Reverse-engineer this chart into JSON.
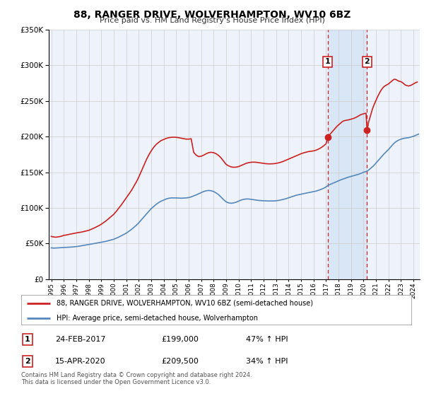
{
  "title": "88, RANGER DRIVE, WOLVERHAMPTON, WV10 6BZ",
  "subtitle": "Price paid vs. HM Land Registry's House Price Index (HPI)",
  "legend_line1": "88, RANGER DRIVE, WOLVERHAMPTON, WV10 6BZ (semi-detached house)",
  "legend_line2": "HPI: Average price, semi-detached house, Wolverhampton",
  "footnote1": "Contains HM Land Registry data © Crown copyright and database right 2024.",
  "footnote2": "This data is licensed under the Open Government Licence v3.0.",
  "marker1_label": "1",
  "marker1_date": "24-FEB-2017",
  "marker1_price": "£199,000",
  "marker1_hpi": "47% ↑ HPI",
  "marker1_x": 2017.12,
  "marker1_y": 199000,
  "marker2_label": "2",
  "marker2_date": "15-APR-2020",
  "marker2_price": "£209,500",
  "marker2_hpi": "34% ↑ HPI",
  "marker2_x": 2020.28,
  "marker2_y": 209500,
  "ylim": [
    0,
    350000
  ],
  "xlim_start": 1994.8,
  "xlim_end": 2024.5,
  "hpi_color": "#5588bb",
  "price_color": "#cc2222",
  "bg_color": "#eef2fa",
  "grid_color": "#cccccc",
  "vline_color": "#cc2222",
  "shade_color": "#d8e6f5",
  "hpi_data": [
    [
      1995.0,
      44000
    ],
    [
      1995.1,
      43800
    ],
    [
      1995.2,
      43600
    ],
    [
      1995.3,
      43700
    ],
    [
      1995.4,
      43900
    ],
    [
      1995.5,
      44000
    ],
    [
      1995.6,
      44100
    ],
    [
      1995.7,
      44200
    ],
    [
      1995.8,
      44300
    ],
    [
      1995.9,
      44400
    ],
    [
      1996.0,
      44500
    ],
    [
      1996.2,
      44600
    ],
    [
      1996.4,
      44800
    ],
    [
      1996.6,
      45000
    ],
    [
      1996.8,
      45300
    ],
    [
      1997.0,
      45700
    ],
    [
      1997.2,
      46200
    ],
    [
      1997.4,
      46800
    ],
    [
      1997.6,
      47400
    ],
    [
      1997.8,
      47900
    ],
    [
      1998.0,
      48500
    ],
    [
      1998.2,
      49200
    ],
    [
      1998.4,
      49900
    ],
    [
      1998.6,
      50600
    ],
    [
      1998.8,
      51200
    ],
    [
      1999.0,
      51800
    ],
    [
      1999.2,
      52500
    ],
    [
      1999.4,
      53200
    ],
    [
      1999.6,
      54100
    ],
    [
      1999.8,
      55000
    ],
    [
      2000.0,
      56000
    ],
    [
      2000.2,
      57500
    ],
    [
      2000.4,
      59000
    ],
    [
      2000.6,
      60800
    ],
    [
      2000.8,
      62500
    ],
    [
      2001.0,
      64500
    ],
    [
      2001.2,
      67000
    ],
    [
      2001.4,
      69500
    ],
    [
      2001.6,
      72500
    ],
    [
      2001.8,
      75500
    ],
    [
      2002.0,
      79000
    ],
    [
      2002.2,
      83000
    ],
    [
      2002.4,
      87000
    ],
    [
      2002.6,
      91000
    ],
    [
      2002.8,
      95000
    ],
    [
      2003.0,
      99000
    ],
    [
      2003.2,
      102000
    ],
    [
      2003.4,
      105000
    ],
    [
      2003.6,
      107500
    ],
    [
      2003.8,
      109500
    ],
    [
      2004.0,
      111000
    ],
    [
      2004.2,
      112500
    ],
    [
      2004.4,
      113500
    ],
    [
      2004.6,
      114000
    ],
    [
      2004.8,
      114000
    ],
    [
      2005.0,
      114000
    ],
    [
      2005.2,
      113800
    ],
    [
      2005.4,
      113600
    ],
    [
      2005.6,
      113800
    ],
    [
      2005.8,
      114000
    ],
    [
      2006.0,
      114500
    ],
    [
      2006.2,
      115500
    ],
    [
      2006.4,
      116800
    ],
    [
      2006.6,
      118200
    ],
    [
      2006.8,
      119800
    ],
    [
      2007.0,
      121500
    ],
    [
      2007.2,
      123000
    ],
    [
      2007.4,
      124000
    ],
    [
      2007.6,
      124500
    ],
    [
      2007.8,
      124000
    ],
    [
      2008.0,
      123000
    ],
    [
      2008.2,
      121000
    ],
    [
      2008.4,
      118500
    ],
    [
      2008.6,
      115000
    ],
    [
      2008.8,
      111500
    ],
    [
      2009.0,
      108500
    ],
    [
      2009.2,
      107000
    ],
    [
      2009.4,
      106500
    ],
    [
      2009.6,
      107000
    ],
    [
      2009.8,
      108000
    ],
    [
      2010.0,
      109500
    ],
    [
      2010.2,
      111000
    ],
    [
      2010.4,
      112000
    ],
    [
      2010.6,
      112500
    ],
    [
      2010.8,
      112500
    ],
    [
      2011.0,
      112000
    ],
    [
      2011.2,
      111500
    ],
    [
      2011.4,
      111000
    ],
    [
      2011.6,
      110500
    ],
    [
      2011.8,
      110200
    ],
    [
      2012.0,
      110000
    ],
    [
      2012.2,
      109800
    ],
    [
      2012.4,
      109700
    ],
    [
      2012.6,
      109700
    ],
    [
      2012.8,
      109800
    ],
    [
      2013.0,
      110000
    ],
    [
      2013.2,
      110500
    ],
    [
      2013.4,
      111200
    ],
    [
      2013.6,
      112000
    ],
    [
      2013.8,
      113000
    ],
    [
      2014.0,
      114200
    ],
    [
      2014.2,
      115500
    ],
    [
      2014.4,
      116700
    ],
    [
      2014.6,
      117700
    ],
    [
      2014.8,
      118500
    ],
    [
      2015.0,
      119200
    ],
    [
      2015.2,
      120000
    ],
    [
      2015.4,
      120700
    ],
    [
      2015.6,
      121400
    ],
    [
      2015.8,
      122000
    ],
    [
      2016.0,
      122700
    ],
    [
      2016.2,
      123600
    ],
    [
      2016.4,
      124700
    ],
    [
      2016.6,
      126000
    ],
    [
      2016.8,
      127500
    ],
    [
      2017.0,
      129500
    ],
    [
      2017.12,
      131000
    ],
    [
      2017.2,
      132000
    ],
    [
      2017.4,
      133500
    ],
    [
      2017.6,
      135000
    ],
    [
      2017.8,
      136500
    ],
    [
      2018.0,
      138000
    ],
    [
      2018.2,
      139500
    ],
    [
      2018.4,
      140800
    ],
    [
      2018.6,
      142000
    ],
    [
      2018.8,
      143200
    ],
    [
      2019.0,
      144200
    ],
    [
      2019.2,
      145200
    ],
    [
      2019.4,
      146200
    ],
    [
      2019.6,
      147200
    ],
    [
      2019.8,
      148500
    ],
    [
      2020.0,
      150000
    ],
    [
      2020.28,
      151500
    ],
    [
      2020.4,
      153000
    ],
    [
      2020.6,
      156000
    ],
    [
      2020.8,
      159000
    ],
    [
      2021.0,
      163000
    ],
    [
      2021.2,
      167000
    ],
    [
      2021.4,
      171000
    ],
    [
      2021.6,
      175000
    ],
    [
      2021.8,
      178500
    ],
    [
      2022.0,
      182000
    ],
    [
      2022.2,
      186000
    ],
    [
      2022.4,
      190000
    ],
    [
      2022.6,
      193000
    ],
    [
      2022.8,
      195000
    ],
    [
      2023.0,
      196500
    ],
    [
      2023.2,
      197500
    ],
    [
      2023.4,
      198000
    ],
    [
      2023.6,
      198500
    ],
    [
      2023.8,
      199500
    ],
    [
      2024.0,
      200500
    ],
    [
      2024.2,
      202000
    ],
    [
      2024.4,
      203500
    ]
  ],
  "price_data": [
    [
      1995.0,
      60000
    ],
    [
      1995.1,
      59500
    ],
    [
      1995.2,
      59200
    ],
    [
      1995.3,
      59000
    ],
    [
      1995.4,
      59000
    ],
    [
      1995.5,
      59200
    ],
    [
      1995.6,
      59500
    ],
    [
      1995.7,
      59800
    ],
    [
      1995.8,
      60200
    ],
    [
      1995.9,
      60800
    ],
    [
      1996.0,
      61500
    ],
    [
      1996.2,
      62000
    ],
    [
      1996.4,
      62800
    ],
    [
      1996.6,
      63500
    ],
    [
      1996.8,
      64200
    ],
    [
      1997.0,
      65000
    ],
    [
      1997.2,
      65500
    ],
    [
      1997.4,
      66000
    ],
    [
      1997.6,
      66800
    ],
    [
      1997.8,
      67500
    ],
    [
      1998.0,
      68500
    ],
    [
      1998.2,
      70000
    ],
    [
      1998.4,
      71500
    ],
    [
      1998.6,
      73200
    ],
    [
      1998.8,
      75000
    ],
    [
      1999.0,
      77000
    ],
    [
      1999.2,
      79500
    ],
    [
      1999.4,
      82000
    ],
    [
      1999.6,
      85000
    ],
    [
      1999.8,
      88000
    ],
    [
      2000.0,
      91000
    ],
    [
      2000.2,
      95000
    ],
    [
      2000.4,
      99500
    ],
    [
      2000.6,
      104000
    ],
    [
      2000.8,
      109000
    ],
    [
      2001.0,
      114000
    ],
    [
      2001.2,
      119000
    ],
    [
      2001.4,
      124000
    ],
    [
      2001.6,
      130000
    ],
    [
      2001.8,
      136000
    ],
    [
      2002.0,
      143000
    ],
    [
      2002.2,
      151000
    ],
    [
      2002.4,
      159000
    ],
    [
      2002.6,
      167000
    ],
    [
      2002.8,
      174000
    ],
    [
      2003.0,
      180000
    ],
    [
      2003.2,
      185000
    ],
    [
      2003.4,
      189000
    ],
    [
      2003.6,
      192000
    ],
    [
      2003.8,
      194500
    ],
    [
      2004.0,
      196000
    ],
    [
      2004.2,
      197500
    ],
    [
      2004.4,
      198500
    ],
    [
      2004.6,
      199000
    ],
    [
      2004.8,
      199200
    ],
    [
      2005.0,
      199000
    ],
    [
      2005.2,
      198500
    ],
    [
      2005.4,
      197800
    ],
    [
      2005.6,
      197000
    ],
    [
      2005.8,
      196500
    ],
    [
      2006.0,
      196500
    ],
    [
      2006.2,
      197000
    ],
    [
      2006.4,
      178000
    ],
    [
      2006.6,
      174000
    ],
    [
      2006.8,
      172000
    ],
    [
      2007.0,
      172500
    ],
    [
      2007.2,
      174000
    ],
    [
      2007.4,
      176000
    ],
    [
      2007.6,
      177500
    ],
    [
      2007.8,
      178000
    ],
    [
      2008.0,
      177500
    ],
    [
      2008.2,
      176000
    ],
    [
      2008.4,
      173500
    ],
    [
      2008.6,
      170000
    ],
    [
      2008.8,
      165500
    ],
    [
      2009.0,
      161000
    ],
    [
      2009.2,
      159000
    ],
    [
      2009.4,
      157500
    ],
    [
      2009.6,
      157000
    ],
    [
      2009.8,
      157200
    ],
    [
      2010.0,
      158000
    ],
    [
      2010.2,
      159500
    ],
    [
      2010.4,
      161000
    ],
    [
      2010.6,
      162500
    ],
    [
      2010.8,
      163500
    ],
    [
      2011.0,
      164000
    ],
    [
      2011.2,
      164200
    ],
    [
      2011.4,
      164000
    ],
    [
      2011.6,
      163500
    ],
    [
      2011.8,
      163000
    ],
    [
      2012.0,
      162500
    ],
    [
      2012.2,
      162000
    ],
    [
      2012.4,
      161800
    ],
    [
      2012.6,
      161800
    ],
    [
      2012.8,
      162000
    ],
    [
      2013.0,
      162500
    ],
    [
      2013.2,
      163200
    ],
    [
      2013.4,
      164200
    ],
    [
      2013.6,
      165500
    ],
    [
      2013.8,
      167000
    ],
    [
      2014.0,
      168500
    ],
    [
      2014.2,
      170000
    ],
    [
      2014.4,
      171500
    ],
    [
      2014.6,
      173000
    ],
    [
      2014.8,
      174500
    ],
    [
      2015.0,
      176000
    ],
    [
      2015.2,
      177200
    ],
    [
      2015.4,
      178200
    ],
    [
      2015.6,
      179000
    ],
    [
      2015.8,
      179500
    ],
    [
      2016.0,
      180000
    ],
    [
      2016.2,
      181000
    ],
    [
      2016.4,
      182500
    ],
    [
      2016.6,
      184500
    ],
    [
      2016.8,
      187000
    ],
    [
      2017.0,
      190000
    ],
    [
      2017.05,
      193000
    ],
    [
      2017.08,
      196000
    ],
    [
      2017.12,
      199000
    ],
    [
      2017.2,
      201000
    ],
    [
      2017.3,
      203000
    ],
    [
      2017.4,
      205000
    ],
    [
      2017.5,
      207000
    ],
    [
      2017.6,
      209000
    ],
    [
      2017.7,
      211000
    ],
    [
      2017.8,
      213000
    ],
    [
      2017.9,
      215000
    ],
    [
      2018.0,
      216500
    ],
    [
      2018.1,
      218000
    ],
    [
      2018.2,
      219500
    ],
    [
      2018.3,
      221000
    ],
    [
      2018.4,
      222000
    ],
    [
      2018.5,
      222500
    ],
    [
      2018.6,
      222800
    ],
    [
      2018.7,
      223000
    ],
    [
      2018.8,
      223500
    ],
    [
      2018.9,
      224000
    ],
    [
      2019.0,
      224500
    ],
    [
      2019.1,
      225000
    ],
    [
      2019.2,
      225500
    ],
    [
      2019.3,
      226200
    ],
    [
      2019.4,
      227000
    ],
    [
      2019.5,
      228000
    ],
    [
      2019.6,
      229000
    ],
    [
      2019.7,
      230000
    ],
    [
      2019.8,
      231000
    ],
    [
      2019.9,
      231500
    ],
    [
      2020.0,
      232000
    ],
    [
      2020.1,
      232500
    ],
    [
      2020.2,
      232800
    ],
    [
      2020.28,
      209500
    ],
    [
      2020.35,
      215000
    ],
    [
      2020.4,
      220000
    ],
    [
      2020.5,
      226000
    ],
    [
      2020.6,
      232000
    ],
    [
      2020.7,
      238000
    ],
    [
      2020.8,
      243000
    ],
    [
      2020.9,
      247000
    ],
    [
      2021.0,
      251000
    ],
    [
      2021.1,
      255000
    ],
    [
      2021.2,
      258500
    ],
    [
      2021.3,
      262000
    ],
    [
      2021.4,
      265000
    ],
    [
      2021.5,
      267500
    ],
    [
      2021.6,
      269500
    ],
    [
      2021.7,
      271000
    ],
    [
      2021.8,
      272000
    ],
    [
      2021.9,
      273000
    ],
    [
      2022.0,
      274000
    ],
    [
      2022.1,
      275500
    ],
    [
      2022.2,
      277000
    ],
    [
      2022.3,
      278500
    ],
    [
      2022.4,
      280000
    ],
    [
      2022.5,
      280500
    ],
    [
      2022.6,
      280000
    ],
    [
      2022.7,
      279000
    ],
    [
      2022.8,
      278000
    ],
    [
      2022.9,
      277500
    ],
    [
      2023.0,
      277000
    ],
    [
      2023.1,
      276000
    ],
    [
      2023.2,
      274500
    ],
    [
      2023.3,
      273000
    ],
    [
      2023.4,
      272000
    ],
    [
      2023.5,
      271500
    ],
    [
      2023.6,
      271000
    ],
    [
      2023.7,
      271500
    ],
    [
      2023.8,
      272000
    ],
    [
      2023.9,
      273000
    ],
    [
      2024.0,
      274000
    ],
    [
      2024.1,
      275000
    ],
    [
      2024.2,
      276000
    ],
    [
      2024.3,
      276500
    ]
  ]
}
